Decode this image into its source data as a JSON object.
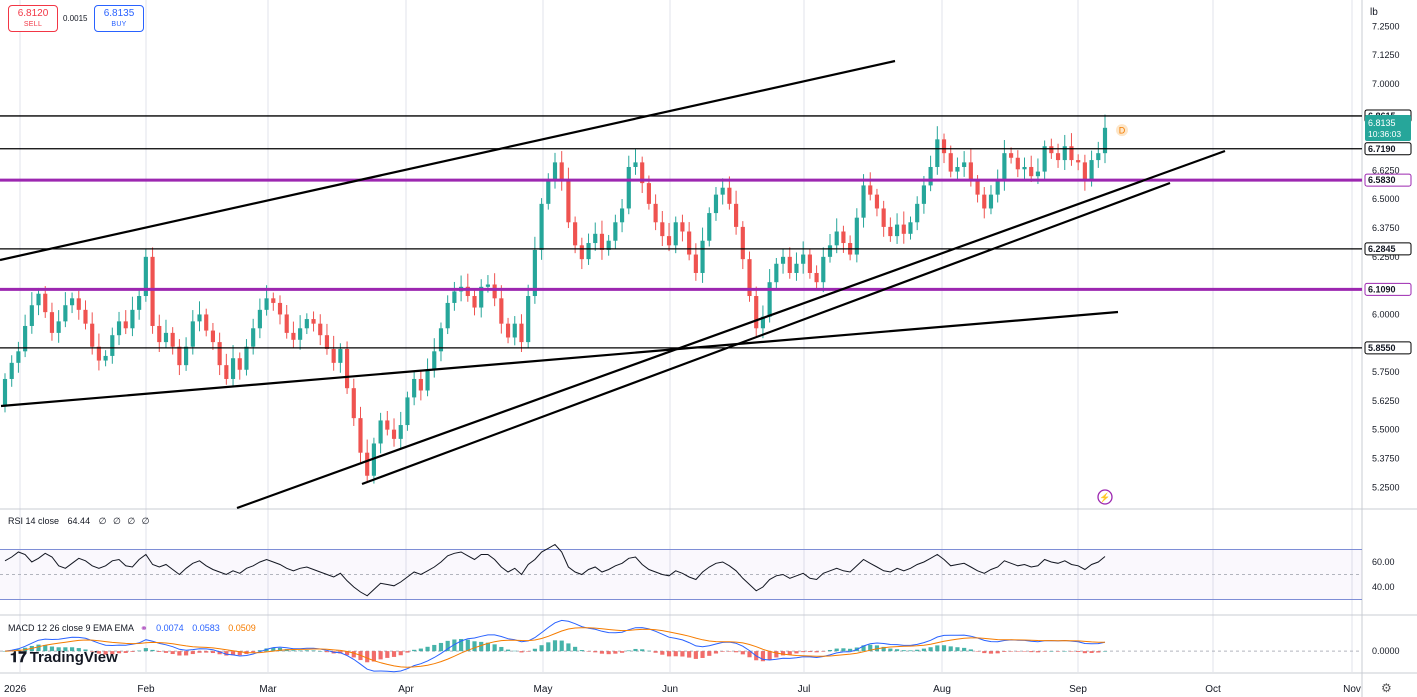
{
  "header": {
    "sell_price": "6.8120",
    "sell_label": "SELL",
    "spread": "0.0015",
    "buy_price": "6.8135",
    "buy_label": "BUY"
  },
  "axis_unit": "lb",
  "settings_icon": "gear-icon",
  "logo_text": "TradingView",
  "colors": {
    "up": "#26a69a",
    "down": "#ef5350",
    "purple": "#9c27b0",
    "text": "#131722",
    "grid": "#e0e3eb"
  },
  "chart_data": [
    {
      "type": "candlestick",
      "title": "",
      "price_ticks": [
        "7.2500",
        "7.1250",
        "7.0000",
        "6.6250",
        "6.5000",
        "6.3750",
        "6.2500",
        "6.0000",
        "5.7500",
        "5.6250",
        "5.5000",
        "5.3750",
        "5.2500"
      ],
      "time_ticks": [
        "2026",
        "Feb",
        "Mar",
        "Apr",
        "May",
        "Jun",
        "Jul",
        "Aug",
        "Sep",
        "Oct",
        "Nov"
      ],
      "ylim": [
        5.16,
        7.33
      ],
      "horizontal_levels": [
        {
          "label": "6.8615",
          "value": 6.8615,
          "color": "#000000"
        },
        {
          "label": "6.7190",
          "value": 6.719,
          "color": "#000000"
        },
        {
          "label": "6.5830",
          "value": 6.583,
          "color": "#9c27b0"
        },
        {
          "label": "6.2845",
          "value": 6.2845,
          "color": "#000000"
        },
        {
          "label": "6.1090",
          "value": 6.109,
          "color": "#9c27b0"
        },
        {
          "label": "5.8550",
          "value": 5.855,
          "color": "#000000"
        }
      ],
      "current_price": {
        "value": 6.8135,
        "label": "6.8135",
        "countdown": "10:36:03",
        "badge": "D"
      },
      "closes": [
        5.72,
        5.79,
        5.84,
        5.95,
        6.04,
        6.09,
        6.01,
        5.92,
        5.97,
        6.04,
        6.07,
        6.02,
        5.96,
        5.86,
        5.8,
        5.82,
        5.91,
        5.97,
        5.94,
        6.02,
        6.08,
        6.25,
        5.95,
        5.88,
        5.92,
        5.86,
        5.78,
        5.86,
        5.97,
        6.0,
        5.93,
        5.88,
        5.78,
        5.72,
        5.81,
        5.76,
        5.86,
        5.94,
        6.02,
        6.07,
        6.05,
        6.0,
        5.92,
        5.89,
        5.94,
        5.98,
        5.96,
        5.91,
        5.85,
        5.79,
        5.85,
        5.68,
        5.55,
        5.4,
        5.3,
        5.44,
        5.54,
        5.5,
        5.46,
        5.52,
        5.64,
        5.72,
        5.67,
        5.76,
        5.84,
        5.94,
        6.05,
        6.1,
        6.12,
        6.08,
        6.03,
        6.12,
        6.13,
        6.07,
        5.96,
        5.9,
        5.96,
        5.88,
        6.08,
        6.28,
        6.48,
        6.58,
        6.66,
        6.58,
        6.4,
        6.3,
        6.24,
        6.31,
        6.35,
        6.28,
        6.32,
        6.4,
        6.46,
        6.64,
        6.66,
        6.57,
        6.48,
        6.4,
        6.34,
        6.3,
        6.4,
        6.36,
        6.26,
        6.18,
        6.32,
        6.44,
        6.52,
        6.55,
        6.48,
        6.38,
        6.24,
        6.08,
        5.94,
        5.99,
        6.14,
        6.22,
        6.25,
        6.18,
        6.22,
        6.26,
        6.18,
        6.14,
        6.25,
        6.3,
        6.36,
        6.31,
        6.26,
        6.42,
        6.56,
        6.52,
        6.46,
        6.38,
        6.34,
        6.39,
        6.35,
        6.4,
        6.48,
        6.56,
        6.64,
        6.76,
        6.7,
        6.62,
        6.64,
        6.66,
        6.58,
        6.52,
        6.46,
        6.52,
        6.58,
        6.7,
        6.68,
        6.63,
        6.64,
        6.6,
        6.62,
        6.73,
        6.7,
        6.67,
        6.73,
        6.67,
        6.66,
        6.58,
        6.67,
        6.7,
        6.81
      ]
    },
    {
      "type": "line",
      "name": "RSI 14 close",
      "value_label": "64.44",
      "na_labels": [
        "∅",
        "∅",
        "∅",
        "∅"
      ],
      "ticks": [
        "60.00",
        "40.00"
      ],
      "ylim": [
        20,
        100
      ],
      "band": [
        70,
        30
      ],
      "values": [
        61,
        64,
        68,
        66,
        60,
        63,
        67,
        64,
        57,
        55,
        59,
        63,
        61,
        57,
        55,
        57,
        61,
        62,
        57,
        56,
        62,
        66,
        58,
        56,
        58,
        54,
        50,
        55,
        59,
        61,
        57,
        54,
        52,
        50,
        53,
        51,
        55,
        57,
        60,
        62,
        60,
        58,
        55,
        53,
        55,
        56,
        54,
        52,
        50,
        48,
        51,
        45,
        40,
        36,
        33,
        38,
        43,
        42,
        41,
        44,
        48,
        52,
        50,
        53,
        56,
        60,
        65,
        67,
        68,
        65,
        62,
        66,
        66,
        62,
        56,
        52,
        55,
        50,
        58,
        62,
        68,
        71,
        74,
        68,
        56,
        52,
        50,
        54,
        56,
        52,
        54,
        57,
        59,
        63,
        64,
        58,
        54,
        52,
        50,
        49,
        53,
        51,
        48,
        46,
        52,
        56,
        59,
        60,
        57,
        53,
        47,
        42,
        37,
        40,
        46,
        49,
        50,
        47,
        49,
        51,
        47,
        46,
        51,
        53,
        55,
        53,
        52,
        57,
        62,
        59,
        56,
        53,
        52,
        55,
        53,
        55,
        58,
        60,
        63,
        66,
        62,
        57,
        58,
        59,
        56,
        53,
        51,
        54,
        56,
        61,
        59,
        57,
        58,
        56,
        57,
        62,
        60,
        59,
        61,
        58,
        57,
        54,
        58,
        60,
        64.44
      ]
    },
    {
      "type": "bar+line",
      "name": "MACD 12 26 close 9 EMA EMA",
      "value_labels": [
        "0.0074",
        "0.0583",
        "0.0509"
      ],
      "ticks": [
        "0.0000"
      ],
      "ylim": [
        -0.12,
        0.2
      ]
    }
  ]
}
